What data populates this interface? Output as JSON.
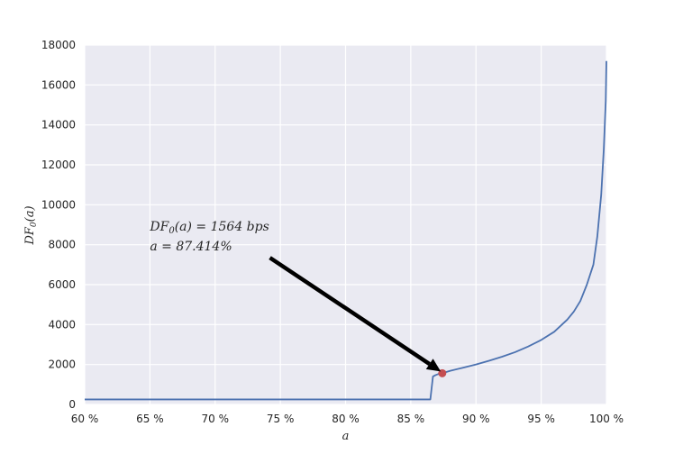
{
  "chart_data": {
    "type": "line",
    "title": "",
    "xlabel": "a",
    "ylabel": "DF0(a)",
    "xlim": [
      60,
      100
    ],
    "ylim": [
      0,
      18000
    ],
    "x_unit": "%",
    "x_ticks": [
      60,
      65,
      70,
      75,
      80,
      85,
      90,
      95,
      100
    ],
    "x_tick_labels": [
      "60 %",
      "65 %",
      "70 %",
      "75 %",
      "80 %",
      "85 %",
      "90 %",
      "95 %",
      "100 %"
    ],
    "y_ticks": [
      0,
      2000,
      4000,
      6000,
      8000,
      10000,
      12000,
      14000,
      16000,
      18000
    ],
    "y_tick_labels": [
      "0",
      "2000",
      "4000",
      "6000",
      "8000",
      "10000",
      "12000",
      "14000",
      "16000",
      "18000"
    ],
    "grid": true,
    "legend": "none",
    "series": [
      {
        "color": "#4c72b0",
        "x": [
          60,
          65,
          70,
          75,
          80,
          85,
          86.5,
          86.7,
          86.9,
          87.1,
          87.414,
          88,
          89,
          90,
          91,
          92,
          93,
          94,
          95,
          96,
          97,
          97.5,
          98,
          98.5,
          99,
          99.3,
          99.6,
          99.8,
          99.95,
          100
        ],
        "y": [
          250,
          250,
          250,
          250,
          250,
          250,
          250,
          1400,
          1470,
          1520,
          1564,
          1680,
          1840,
          2000,
          2190,
          2390,
          2620,
          2900,
          3230,
          3640,
          4250,
          4650,
          5180,
          6000,
          7000,
          8400,
          10500,
          12800,
          15200,
          17200
        ]
      }
    ],
    "highlight_point": {
      "x": 87.414,
      "y": 1564,
      "color": "#c44e52"
    },
    "annotation": {
      "line1": "DF0(a) = 1564 bps",
      "line2": "a = 87.414%",
      "text_anchor_x": 65,
      "text_anchor_y": 8700,
      "arrow_from_x": 74.2,
      "arrow_from_y": 7350,
      "arrow_to_x": 87.3,
      "arrow_to_y": 1650
    },
    "colors": {
      "plot_background": "#eaeaf2",
      "grid": "#ffffff",
      "line": "#4c72b0",
      "point": "#c44e52",
      "arrow": "#000000"
    }
  }
}
